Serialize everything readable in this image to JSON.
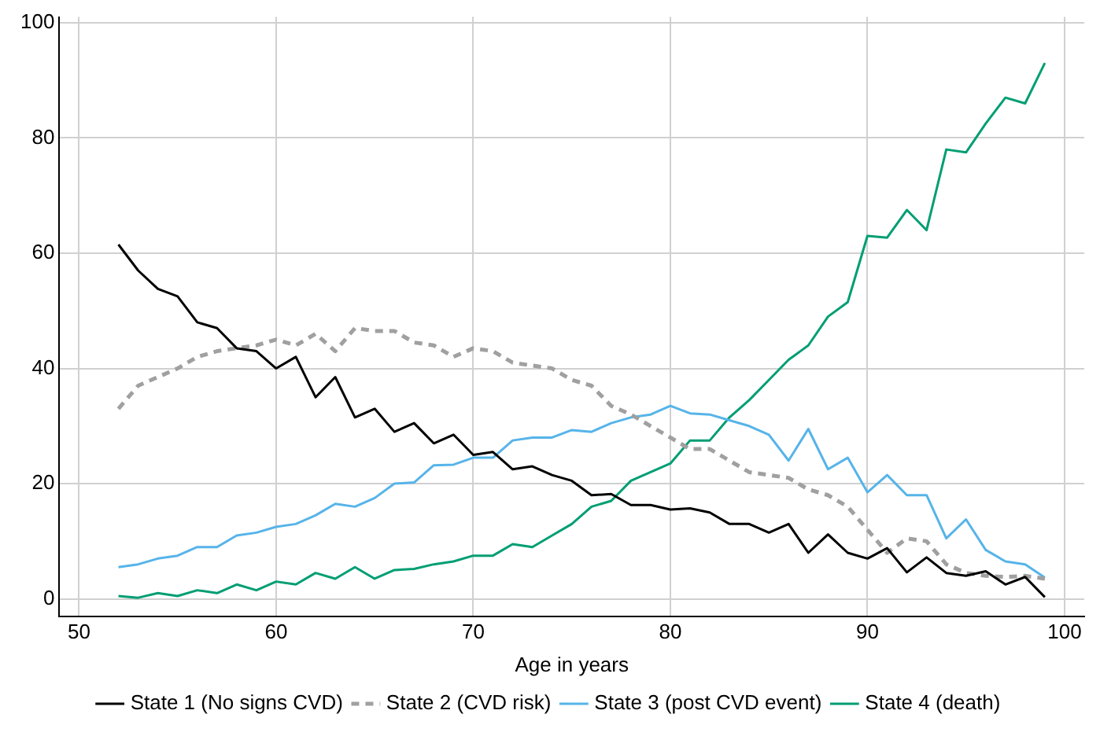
{
  "chart_data": {
    "type": "line",
    "xlabel": "Age in years",
    "x": [
      52,
      53,
      54,
      55,
      56,
      57,
      58,
      59,
      60,
      61,
      62,
      63,
      64,
      65,
      66,
      67,
      68,
      69,
      70,
      71,
      72,
      73,
      74,
      75,
      76,
      77,
      78,
      79,
      80,
      81,
      82,
      83,
      84,
      85,
      86,
      87,
      88,
      89,
      90,
      91,
      92,
      93,
      94,
      95,
      96,
      97,
      98,
      99
    ],
    "xlim": [
      49,
      101
    ],
    "xticks": [
      50,
      60,
      70,
      80,
      90,
      100
    ],
    "ylim": [
      -3,
      101
    ],
    "yticks": [
      0,
      20,
      40,
      60,
      80,
      100
    ],
    "grid": true,
    "legend": "bottom",
    "marker": "none",
    "series": [
      {
        "name": "State 1 (No signs CVD)",
        "color": "#000000",
        "line_style": "solid",
        "values": [
          61.5,
          57,
          53.8,
          52.5,
          48,
          47,
          43.5,
          43,
          40,
          42,
          35,
          38.5,
          31.5,
          33,
          29,
          30.5,
          27,
          28.5,
          25,
          25.5,
          22.5,
          23,
          21.5,
          20.5,
          18,
          18.2,
          16.3,
          16.3,
          15.5,
          15.7,
          15,
          13,
          13,
          11.5,
          13,
          8,
          11.2,
          8,
          7,
          8.8,
          4.6,
          7.2,
          4.5,
          4,
          4.8,
          2.5,
          3.8,
          0.3
        ]
      },
      {
        "name": "State 2 (CVD risk)",
        "color": "#a0a0a0",
        "line_style": "dashed",
        "values": [
          33,
          37,
          38.5,
          40,
          42,
          43,
          43.5,
          44,
          45,
          44,
          46,
          43,
          47,
          46.5,
          46.5,
          44.5,
          44,
          42,
          43.5,
          43,
          41,
          40.5,
          40,
          38,
          37,
          33.5,
          32,
          30,
          28,
          26,
          26,
          24,
          22,
          21.5,
          21,
          19,
          18,
          16,
          12,
          8,
          10.5,
          10,
          6,
          4.5,
          4,
          3.8,
          4,
          3.5
        ]
      },
      {
        "name": "State 3 (post CVD event)",
        "color": "#56b4e9",
        "line_style": "solid",
        "values": [
          5.5,
          6,
          7,
          7.5,
          9,
          9,
          11,
          11.5,
          12.5,
          13,
          14.5,
          16.5,
          16,
          17.5,
          20,
          20.2,
          23.2,
          23.3,
          24.5,
          24.5,
          27.5,
          28,
          28,
          29.3,
          29,
          30.5,
          31.5,
          32,
          33.5,
          32.2,
          32,
          31,
          30,
          28.5,
          24,
          29.5,
          22.5,
          24.5,
          18.5,
          21.5,
          18,
          18,
          10.5,
          13.8,
          8.5,
          6.5,
          6,
          3.7
        ]
      },
      {
        "name": "State 4 (death)",
        "color": "#009e73",
        "line_style": "solid",
        "values": [
          0.5,
          0.2,
          1,
          0.5,
          1.5,
          1,
          2.5,
          1.5,
          3,
          2.5,
          4.5,
          3.5,
          5.5,
          3.5,
          5,
          5.2,
          6,
          6.5,
          7.5,
          7.5,
          9.5,
          9,
          11,
          13,
          16,
          17,
          20.5,
          22,
          23.5,
          27.5,
          27.5,
          31.5,
          34.5,
          38,
          41.5,
          44,
          49,
          51.5,
          63,
          62.7,
          67.5,
          64,
          78,
          77.5,
          82.5,
          87,
          86,
          93
        ]
      }
    ]
  }
}
